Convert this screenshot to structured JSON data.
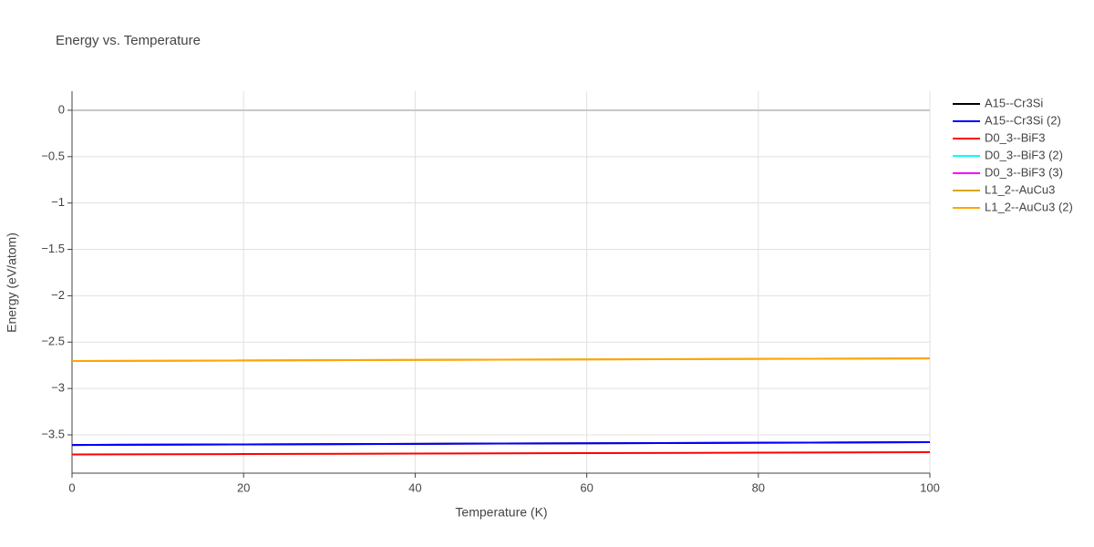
{
  "chart_data": {
    "type": "line",
    "title": "Energy vs. Temperature",
    "x_label": "Temperature (K)",
    "y_label": "Energy (eV/atom)",
    "x": [
      0,
      20,
      40,
      60,
      80,
      100
    ],
    "series": [
      {
        "name": "A15--Cr3Si",
        "color": "#000000",
        "values": [
          -3.609,
          -3.603,
          -3.597,
          -3.591,
          -3.585,
          -3.579
        ]
      },
      {
        "name": "A15--Cr3Si (2)",
        "color": "#0000ff",
        "values": [
          -3.609,
          -3.603,
          -3.597,
          -3.591,
          -3.585,
          -3.579
        ]
      },
      {
        "name": "D0_3--BiF3",
        "color": "#ff0000",
        "values": [
          -3.712,
          -3.707,
          -3.702,
          -3.697,
          -3.692,
          -3.687
        ]
      },
      {
        "name": "D0_3--BiF3 (2)",
        "color": "#00ffff",
        "values": [
          null,
          null,
          null,
          null,
          null,
          null
        ]
      },
      {
        "name": "D0_3--BiF3 (3)",
        "color": "#ff00ff",
        "values": [
          null,
          null,
          null,
          null,
          null,
          null
        ]
      },
      {
        "name": "L1_2--AuCu3",
        "color": "#daa520",
        "values": [
          -2.704,
          -2.698,
          -2.692,
          -2.687,
          -2.681,
          -2.675
        ]
      },
      {
        "name": "L1_2--AuCu3 (2)",
        "color": "#ffa500",
        "values": [
          -2.704,
          -2.698,
          -2.692,
          -2.687,
          -2.681,
          -2.675
        ]
      }
    ],
    "xlim": [
      0,
      100
    ],
    "ylim": [
      -3.913,
      0.206
    ],
    "xticks": [
      0,
      20,
      40,
      60,
      80,
      100
    ],
    "yticks": [
      0,
      {
        "value": -0.5,
        "label": "−0.5"
      },
      {
        "value": -1,
        "label": "−1"
      },
      {
        "value": -1.5,
        "label": "−1.5"
      },
      {
        "value": -2,
        "label": "−2"
      },
      {
        "value": -2.5,
        "label": "−2.5"
      },
      {
        "value": -3,
        "label": "−3"
      },
      {
        "value": -3.5,
        "label": "−3.5"
      }
    ],
    "grid": true
  }
}
